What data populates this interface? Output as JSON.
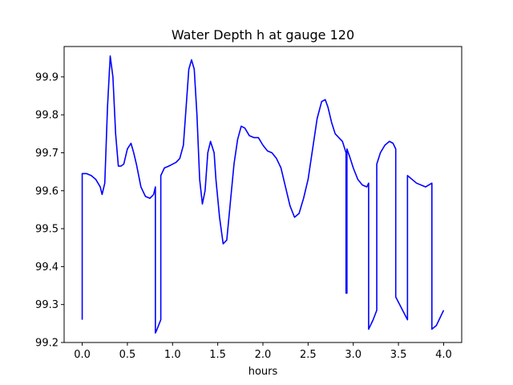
{
  "chart_data": {
    "type": "line",
    "title": "Water Depth h at gauge 120",
    "xlabel": "hours",
    "ylabel": "",
    "xlim": [
      -0.2,
      4.2
    ],
    "ylim": [
      99.2,
      99.98
    ],
    "grid": false,
    "legend": "none",
    "xticks": [
      "0.0",
      "0.5",
      "1.0",
      "1.5",
      "2.0",
      "2.5",
      "3.0",
      "3.5",
      "4.0"
    ],
    "yticks": [
      "99.2",
      "99.3",
      "99.4",
      "99.5",
      "99.6",
      "99.7",
      "99.8",
      "99.9"
    ],
    "series": [
      {
        "name": "",
        "color": "#0000ff",
        "x": [
          0.0,
          0.0,
          0.05,
          0.1,
          0.15,
          0.2,
          0.22,
          0.25,
          0.28,
          0.31,
          0.34,
          0.37,
          0.4,
          0.43,
          0.46,
          0.5,
          0.54,
          0.57,
          0.6,
          0.65,
          0.7,
          0.75,
          0.79,
          0.81,
          0.81,
          0.82,
          0.87,
          0.87,
          0.91,
          0.96,
          1.0,
          1.04,
          1.08,
          1.12,
          1.15,
          1.18,
          1.21,
          1.24,
          1.27,
          1.3,
          1.33,
          1.36,
          1.39,
          1.42,
          1.46,
          1.48,
          1.52,
          1.56,
          1.6,
          1.64,
          1.68,
          1.72,
          1.76,
          1.8,
          1.85,
          1.9,
          1.95,
          2.0,
          2.05,
          2.1,
          2.15,
          2.2,
          2.25,
          2.3,
          2.35,
          2.4,
          2.45,
          2.5,
          2.55,
          2.6,
          2.65,
          2.69,
          2.72,
          2.76,
          2.8,
          2.84,
          2.88,
          2.92,
          2.92,
          2.93,
          2.93,
          2.96,
          3.0,
          3.05,
          3.1,
          3.15,
          3.17,
          3.17,
          3.22,
          3.26,
          3.26,
          3.3,
          3.35,
          3.4,
          3.44,
          3.47,
          3.47,
          3.6,
          3.6,
          3.7,
          3.8,
          3.87,
          3.87,
          3.92,
          3.96,
          4.0
        ],
        "y": [
          99.26,
          99.645,
          99.645,
          99.64,
          99.63,
          99.61,
          99.59,
          99.62,
          99.82,
          99.955,
          99.9,
          99.75,
          99.665,
          99.665,
          99.67,
          99.71,
          99.725,
          99.7,
          99.67,
          99.61,
          99.585,
          99.58,
          99.59,
          99.61,
          99.225,
          99.23,
          99.26,
          99.64,
          99.66,
          99.665,
          99.67,
          99.675,
          99.685,
          99.72,
          99.82,
          99.92,
          99.945,
          99.92,
          99.8,
          99.63,
          99.565,
          99.6,
          99.7,
          99.73,
          99.7,
          99.63,
          99.53,
          99.46,
          99.47,
          99.57,
          99.67,
          99.735,
          99.77,
          99.765,
          99.745,
          99.74,
          99.74,
          99.72,
          99.705,
          99.7,
          99.685,
          99.66,
          99.61,
          99.56,
          99.53,
          99.54,
          99.58,
          99.63,
          99.71,
          99.79,
          99.835,
          99.84,
          99.82,
          99.78,
          99.75,
          99.74,
          99.73,
          99.7,
          99.33,
          99.33,
          99.71,
          99.69,
          99.66,
          99.63,
          99.615,
          99.61,
          99.62,
          99.235,
          99.26,
          99.285,
          99.67,
          99.7,
          99.72,
          99.73,
          99.725,
          99.71,
          99.32,
          99.26,
          99.64,
          99.62,
          99.61,
          99.62,
          99.235,
          99.245,
          99.265,
          99.285
        ]
      }
    ]
  }
}
